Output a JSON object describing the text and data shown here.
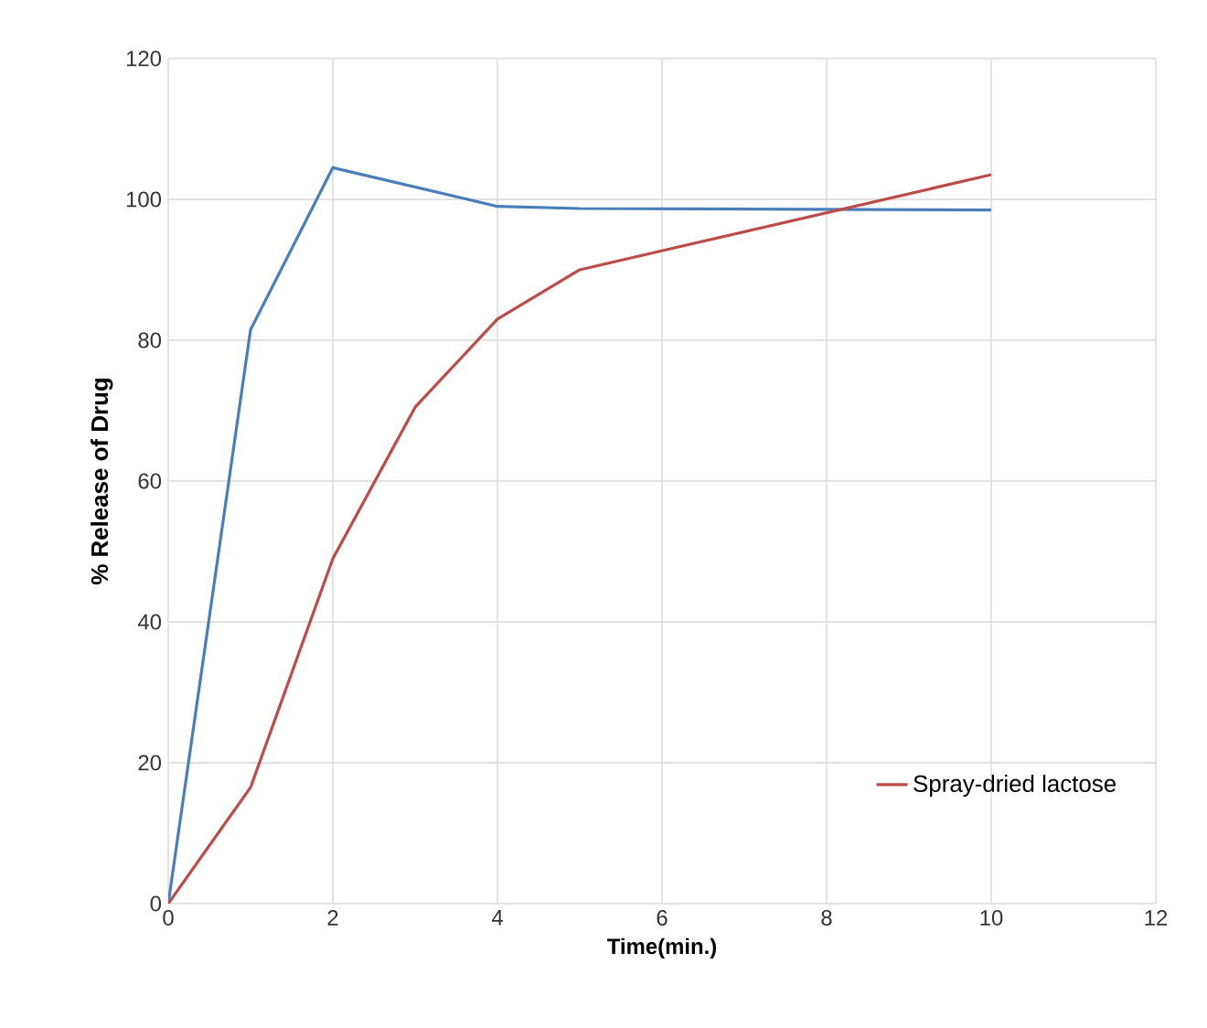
{
  "chart_data": {
    "type": "line",
    "xlabel": "Time(min.)",
    "ylabel": "% Release of Drug",
    "series": [
      {
        "color": "#4a7ebb",
        "x": [
          0,
          1,
          2,
          4,
          5,
          10
        ],
        "values": [
          0,
          81.5,
          104.5,
          99,
          98.7,
          98.5
        ]
      },
      {
        "name": "Spray-dried lactose",
        "color": "#be4b48",
        "x": [
          0,
          1,
          2,
          3,
          4,
          5,
          10
        ],
        "values": [
          0,
          16.5,
          49,
          70.5,
          83,
          90,
          103.5
        ]
      }
    ],
    "xlim": [
      0,
      12
    ],
    "xticks": [
      0,
      2,
      4,
      6,
      8,
      10,
      12
    ],
    "ylim": [
      0,
      120
    ],
    "yticks": [
      0,
      20,
      40,
      60,
      80,
      100,
      120
    ],
    "grid": true,
    "legend": "bottom right",
    "marker": "none",
    "line_style": "solid"
  }
}
